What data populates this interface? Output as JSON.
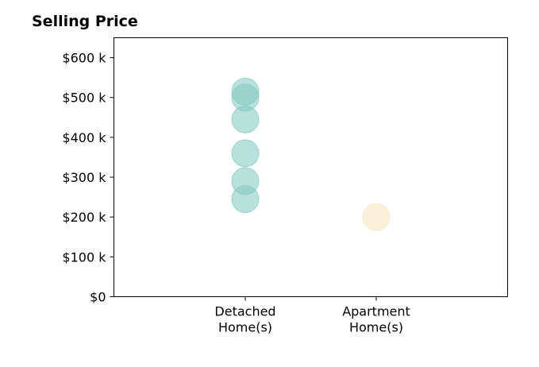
{
  "chart_data": {
    "type": "scatter",
    "title": "Selling Price",
    "xlabel": "",
    "ylabel": "",
    "categories": [
      "Detached\nHome(s)",
      "Apartment\nHome(s)"
    ],
    "ylim": [
      0,
      650000
    ],
    "yticks": [
      {
        "value": 0,
        "label": "$0"
      },
      {
        "value": 100000,
        "label": "$100 k"
      },
      {
        "value": 200000,
        "label": "$200 k"
      },
      {
        "value": 300000,
        "label": "$300 k"
      },
      {
        "value": 400000,
        "label": "$400 k"
      },
      {
        "value": 500000,
        "label": "$500 k"
      },
      {
        "value": 600000,
        "label": "$600 k"
      }
    ],
    "grid": false,
    "series": [
      {
        "category": "Detached\nHome(s)",
        "color": "#80c9bd",
        "values": [
          515000,
          500000,
          445000,
          360000,
          290000,
          245000
        ]
      },
      {
        "category": "Apartment\nHome(s)",
        "color": "#f6e3b8",
        "values": [
          200000
        ]
      }
    ]
  }
}
